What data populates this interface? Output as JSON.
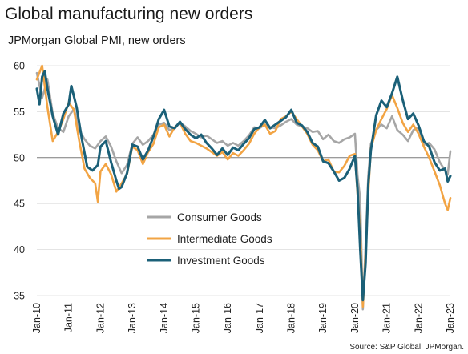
{
  "chart_data": {
    "type": "line",
    "title": "Global manufacturing new orders",
    "subtitle": "JPMorgan Global PMI, new orders",
    "source": "Source: S&P Global, JPMorgan.",
    "ylim": [
      35,
      60
    ],
    "yticks": [
      "35",
      "40",
      "45",
      "50",
      "55",
      "60"
    ],
    "reference_line": 50,
    "grid": "horizontal",
    "x_start": "Jan-10",
    "x_end": "Jan-23",
    "xticks": [
      "Jan-10",
      "Jan-11",
      "Jan-12",
      "Jan-13",
      "Jan-14",
      "Jan-15",
      "Jan-16",
      "Jan-17",
      "Jan-18",
      "Jan-19",
      "Jan-20",
      "Jan-21",
      "Jan-22",
      "Jan-23"
    ],
    "legend_placement": "lower-center",
    "series": [
      {
        "name": "Consumer Goods",
        "color": "#a6a6a6",
        "points": [
          [
            "Jan-10",
            59.2
          ],
          [
            "Mar-10",
            56.5
          ],
          [
            "May-10",
            58.5
          ],
          [
            "Jul-10",
            54.8
          ],
          [
            "Sep-10",
            53.2
          ],
          [
            "Nov-10",
            52.8
          ],
          [
            "Jan-11",
            54.5
          ],
          [
            "Mar-11",
            55.3
          ],
          [
            "May-11",
            53.0
          ],
          [
            "Jul-11",
            52.0
          ],
          [
            "Sep-11",
            51.3
          ],
          [
            "Nov-11",
            51.0
          ],
          [
            "Jan-12",
            51.8
          ],
          [
            "Mar-12",
            52.3
          ],
          [
            "May-12",
            51.2
          ],
          [
            "Jul-12",
            49.6
          ],
          [
            "Sep-12",
            48.3
          ],
          [
            "Nov-12",
            49.2
          ],
          [
            "Jan-13",
            51.5
          ],
          [
            "Mar-13",
            52.2
          ],
          [
            "May-13",
            51.4
          ],
          [
            "Jul-13",
            51.8
          ],
          [
            "Sep-13",
            52.5
          ],
          [
            "Nov-13",
            53.6
          ],
          [
            "Jan-14",
            53.8
          ],
          [
            "Mar-14",
            53.0
          ],
          [
            "May-14",
            53.2
          ],
          [
            "Jul-14",
            53.8
          ],
          [
            "Sep-14",
            53.4
          ],
          [
            "Nov-14",
            52.9
          ],
          [
            "Jan-15",
            52.6
          ],
          [
            "Mar-15",
            52.2
          ],
          [
            "May-15",
            52.4
          ],
          [
            "Jul-15",
            52.0
          ],
          [
            "Sep-15",
            51.6
          ],
          [
            "Nov-15",
            51.8
          ],
          [
            "Jan-16",
            51.3
          ],
          [
            "Mar-16",
            51.6
          ],
          [
            "May-16",
            51.3
          ],
          [
            "Jul-16",
            51.8
          ],
          [
            "Sep-16",
            52.4
          ],
          [
            "Nov-16",
            53.3
          ],
          [
            "Jan-17",
            53.2
          ],
          [
            "Mar-17",
            53.6
          ],
          [
            "May-17",
            53.3
          ],
          [
            "Jul-17",
            53.2
          ],
          [
            "Sep-17",
            53.5
          ],
          [
            "Nov-17",
            53.9
          ],
          [
            "Jan-18",
            54.2
          ],
          [
            "Mar-18",
            53.6
          ],
          [
            "May-18",
            53.4
          ],
          [
            "Jul-18",
            53.2
          ],
          [
            "Sep-18",
            52.8
          ],
          [
            "Nov-18",
            52.9
          ],
          [
            "Jan-19",
            52.0
          ],
          [
            "Mar-19",
            52.5
          ],
          [
            "May-19",
            51.8
          ],
          [
            "Jul-19",
            51.6
          ],
          [
            "Sep-19",
            52.0
          ],
          [
            "Nov-19",
            52.2
          ],
          [
            "Jan-20",
            52.6
          ],
          [
            "Feb-20",
            48.0
          ],
          [
            "Mar-20",
            45.5
          ],
          [
            "Apr-20",
            33.5
          ],
          [
            "May-20",
            40.5
          ],
          [
            "Jun-20",
            48.0
          ],
          [
            "Jul-20",
            51.5
          ],
          [
            "Sep-20",
            53.0
          ],
          [
            "Nov-20",
            53.6
          ],
          [
            "Jan-21",
            53.2
          ],
          [
            "Mar-21",
            54.5
          ],
          [
            "May-21",
            53.0
          ],
          [
            "Jul-21",
            52.5
          ],
          [
            "Sep-21",
            51.8
          ],
          [
            "Nov-21",
            53.0
          ],
          [
            "Jan-22",
            53.3
          ],
          [
            "Mar-22",
            51.4
          ],
          [
            "May-22",
            51.6
          ],
          [
            "Jul-22",
            50.9
          ],
          [
            "Sep-22",
            49.5
          ],
          [
            "Nov-22",
            48.6
          ],
          [
            "Dec-22",
            48.2
          ],
          [
            "Jan-23",
            50.7
          ]
        ]
      },
      {
        "name": "Intermediate Goods",
        "color": "#f2a444",
        "points": [
          [
            "Jan-10",
            58.5
          ],
          [
            "Mar-10",
            60.0
          ],
          [
            "May-10",
            55.5
          ],
          [
            "Jul-10",
            51.8
          ],
          [
            "Sep-10",
            52.8
          ],
          [
            "Nov-10",
            54.2
          ],
          [
            "Jan-11",
            56.0
          ],
          [
            "Mar-11",
            55.2
          ],
          [
            "May-11",
            51.8
          ],
          [
            "Jul-11",
            48.8
          ],
          [
            "Sep-11",
            47.8
          ],
          [
            "Nov-11",
            47.2
          ],
          [
            "Dec-11",
            45.2
          ],
          [
            "Jan-12",
            48.5
          ],
          [
            "Mar-12",
            49.3
          ],
          [
            "May-12",
            48.2
          ],
          [
            "Jul-12",
            46.3
          ],
          [
            "Sep-12",
            47.2
          ],
          [
            "Nov-12",
            48.2
          ],
          [
            "Jan-13",
            51.2
          ],
          [
            "Mar-13",
            50.8
          ],
          [
            "May-13",
            49.3
          ],
          [
            "Jul-13",
            50.6
          ],
          [
            "Sep-13",
            51.5
          ],
          [
            "Nov-13",
            53.3
          ],
          [
            "Jan-14",
            53.6
          ],
          [
            "Mar-14",
            52.3
          ],
          [
            "May-14",
            53.3
          ],
          [
            "Jul-14",
            53.8
          ],
          [
            "Sep-14",
            52.6
          ],
          [
            "Nov-14",
            51.8
          ],
          [
            "Jan-15",
            51.6
          ],
          [
            "Mar-15",
            51.3
          ],
          [
            "May-15",
            51.0
          ],
          [
            "Jul-15",
            50.6
          ],
          [
            "Sep-15",
            50.2
          ],
          [
            "Nov-15",
            50.6
          ],
          [
            "Jan-16",
            49.8
          ],
          [
            "Mar-16",
            50.5
          ],
          [
            "May-16",
            50.2
          ],
          [
            "Jul-16",
            50.8
          ],
          [
            "Sep-16",
            51.5
          ],
          [
            "Nov-16",
            52.6
          ],
          [
            "Jan-17",
            53.3
          ],
          [
            "Mar-17",
            53.6
          ],
          [
            "May-17",
            52.6
          ],
          [
            "Jul-17",
            52.9
          ],
          [
            "Sep-17",
            54.2
          ],
          [
            "Nov-17",
            54.5
          ],
          [
            "Jan-18",
            55.0
          ],
          [
            "Mar-18",
            54.2
          ],
          [
            "May-18",
            53.4
          ],
          [
            "Jul-18",
            52.6
          ],
          [
            "Sep-18",
            51.4
          ],
          [
            "Nov-18",
            50.8
          ],
          [
            "Jan-19",
            49.6
          ],
          [
            "Mar-19",
            49.8
          ],
          [
            "May-19",
            48.5
          ],
          [
            "Jul-19",
            48.4
          ],
          [
            "Sep-19",
            49.1
          ],
          [
            "Nov-19",
            50.2
          ],
          [
            "Jan-20",
            50.4
          ],
          [
            "Feb-20",
            46.0
          ],
          [
            "Mar-20",
            42.0
          ],
          [
            "Apr-20",
            33.8
          ],
          [
            "May-20",
            39.5
          ],
          [
            "Jun-20",
            46.0
          ],
          [
            "Jul-20",
            51.0
          ],
          [
            "Sep-20",
            53.0
          ],
          [
            "Nov-20",
            54.2
          ],
          [
            "Jan-21",
            55.3
          ],
          [
            "Mar-21",
            56.8
          ],
          [
            "May-21",
            55.4
          ],
          [
            "Jul-21",
            53.8
          ],
          [
            "Sep-21",
            52.8
          ],
          [
            "Nov-21",
            53.6
          ],
          [
            "Jan-22",
            52.6
          ],
          [
            "Mar-22",
            51.2
          ],
          [
            "May-22",
            50.0
          ],
          [
            "Jul-22",
            48.5
          ],
          [
            "Sep-22",
            47.0
          ],
          [
            "Nov-22",
            45.0
          ],
          [
            "Dec-22",
            44.3
          ],
          [
            "Jan-23",
            45.6
          ]
        ]
      },
      {
        "name": "Investment Goods",
        "color": "#1b6078",
        "points": [
          [
            "Jan-10",
            57.5
          ],
          [
            "Feb-10",
            55.8
          ],
          [
            "Mar-10",
            58.8
          ],
          [
            "Apr-10",
            59.4
          ],
          [
            "May-10",
            57.5
          ],
          [
            "Jul-10",
            54.5
          ],
          [
            "Sep-10",
            52.5
          ],
          [
            "Nov-10",
            54.8
          ],
          [
            "Jan-11",
            55.8
          ],
          [
            "Feb-11",
            57.8
          ],
          [
            "Apr-11",
            55.5
          ],
          [
            "Jun-11",
            52.0
          ],
          [
            "Aug-11",
            49.0
          ],
          [
            "Oct-11",
            48.6
          ],
          [
            "Dec-11",
            49.2
          ],
          [
            "Jan-12",
            51.2
          ],
          [
            "Mar-12",
            51.8
          ],
          [
            "May-12",
            49.5
          ],
          [
            "Jul-12",
            47.5
          ],
          [
            "Aug-12",
            46.6
          ],
          [
            "Sep-12",
            46.8
          ],
          [
            "Nov-12",
            48.3
          ],
          [
            "Jan-13",
            51.4
          ],
          [
            "Mar-13",
            51.2
          ],
          [
            "May-13",
            49.8
          ],
          [
            "Jul-13",
            50.8
          ],
          [
            "Sep-13",
            52.3
          ],
          [
            "Nov-13",
            54.2
          ],
          [
            "Jan-14",
            55.2
          ],
          [
            "Mar-14",
            53.4
          ],
          [
            "May-14",
            53.2
          ],
          [
            "Jul-14",
            53.9
          ],
          [
            "Sep-14",
            53.1
          ],
          [
            "Nov-14",
            52.5
          ],
          [
            "Jan-15",
            52.1
          ],
          [
            "Mar-15",
            52.5
          ],
          [
            "May-15",
            51.6
          ],
          [
            "Jul-15",
            51.0
          ],
          [
            "Sep-15",
            50.3
          ],
          [
            "Nov-15",
            51.0
          ],
          [
            "Jan-16",
            50.3
          ],
          [
            "Mar-16",
            51.1
          ],
          [
            "May-16",
            50.8
          ],
          [
            "Jul-16",
            51.5
          ],
          [
            "Sep-16",
            52.1
          ],
          [
            "Nov-16",
            53.1
          ],
          [
            "Jan-17",
            53.3
          ],
          [
            "Mar-17",
            54.1
          ],
          [
            "May-17",
            53.2
          ],
          [
            "Jul-17",
            53.6
          ],
          [
            "Sep-17",
            54.0
          ],
          [
            "Nov-17",
            54.4
          ],
          [
            "Jan-18",
            55.2
          ],
          [
            "Mar-18",
            53.8
          ],
          [
            "May-18",
            53.5
          ],
          [
            "Jul-18",
            52.8
          ],
          [
            "Sep-18",
            51.6
          ],
          [
            "Nov-18",
            51.2
          ],
          [
            "Jan-19",
            49.6
          ],
          [
            "Mar-19",
            49.4
          ],
          [
            "May-19",
            48.5
          ],
          [
            "Jul-19",
            47.5
          ],
          [
            "Sep-19",
            47.8
          ],
          [
            "Nov-19",
            48.8
          ],
          [
            "Jan-20",
            50.2
          ],
          [
            "Feb-20",
            46.5
          ],
          [
            "Mar-20",
            40.0
          ],
          [
            "Apr-20",
            34.5
          ],
          [
            "May-20",
            38.5
          ],
          [
            "Jun-20",
            47.0
          ],
          [
            "Jul-20",
            50.8
          ],
          [
            "Sep-20",
            54.6
          ],
          [
            "Nov-20",
            56.2
          ],
          [
            "Jan-21",
            55.5
          ],
          [
            "Mar-21",
            57.0
          ],
          [
            "May-21",
            58.8
          ],
          [
            "Jul-21",
            56.3
          ],
          [
            "Sep-21",
            54.2
          ],
          [
            "Nov-21",
            54.8
          ],
          [
            "Jan-22",
            53.5
          ],
          [
            "Mar-22",
            51.8
          ],
          [
            "May-22",
            51.2
          ],
          [
            "Jul-22",
            49.5
          ],
          [
            "Sep-22",
            48.6
          ],
          [
            "Nov-22",
            48.8
          ],
          [
            "Dec-22",
            47.4
          ],
          [
            "Jan-23",
            48.0
          ]
        ]
      }
    ]
  }
}
